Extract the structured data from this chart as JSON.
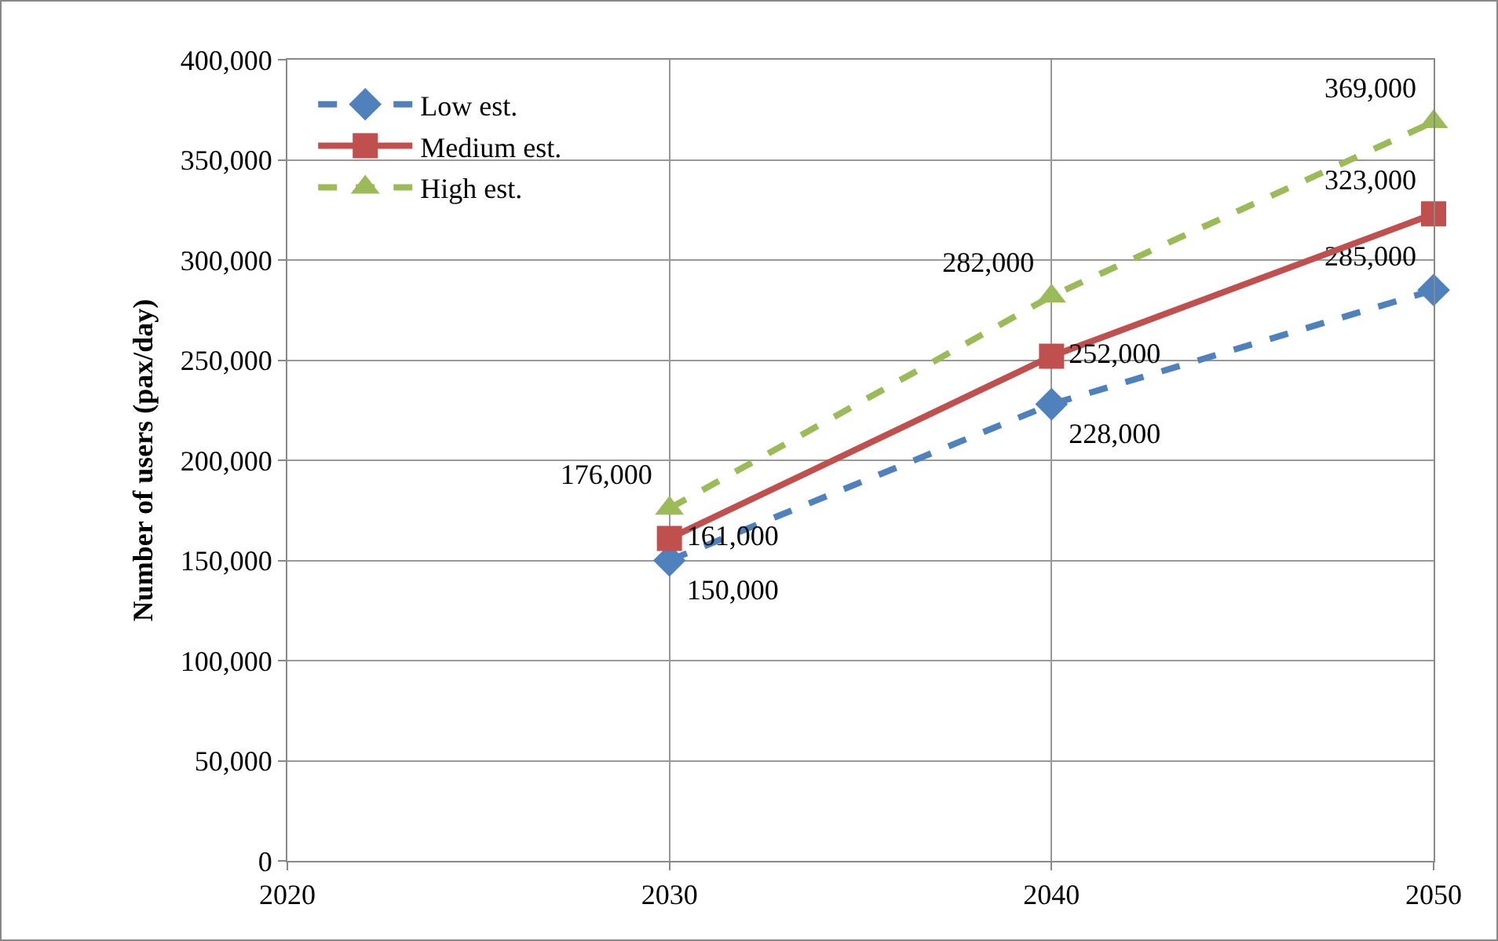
{
  "chart_data": {
    "type": "line",
    "ylabel": "Number of users (pax/day)",
    "x": [
      2030,
      2040,
      2050
    ],
    "series": [
      {
        "name": "Low est.",
        "color": "#4f81bd",
        "marker": "diamond",
        "line_style": "dashed",
        "values": [
          150000,
          228000,
          285000
        ],
        "value_labels": [
          "150,000",
          "228,000",
          "285,000"
        ]
      },
      {
        "name": "Medium est.",
        "color": "#c0504d",
        "marker": "square",
        "line_style": "solid",
        "values": [
          161000,
          252000,
          323000
        ],
        "value_labels": [
          "161,000",
          "252,000",
          "323,000"
        ]
      },
      {
        "name": "High est.",
        "color": "#9bbb59",
        "marker": "triangle",
        "line_style": "dashed",
        "values": [
          176000,
          282000,
          369000
        ],
        "value_labels": [
          "176,000",
          "282,000",
          "369,000"
        ]
      }
    ],
    "xlim": [
      2020,
      2050
    ],
    "xticks": [
      2020,
      2030,
      2040,
      2050
    ],
    "ylim": [
      0,
      400000
    ],
    "yticks": [
      0,
      {
        "value": 50000,
        "label": "50,000"
      },
      {
        "value": 100000,
        "label": "100,000"
      },
      {
        "value": 150000,
        "label": "150,000"
      },
      {
        "value": 200000,
        "label": "200,000"
      },
      {
        "value": 250000,
        "label": "250,000"
      },
      {
        "value": 300000,
        "label": "300,000"
      },
      {
        "value": 350000,
        "label": "350,000"
      },
      {
        "value": 400000,
        "label": "400,000"
      }
    ],
    "grid": true,
    "legend": "top left"
  }
}
